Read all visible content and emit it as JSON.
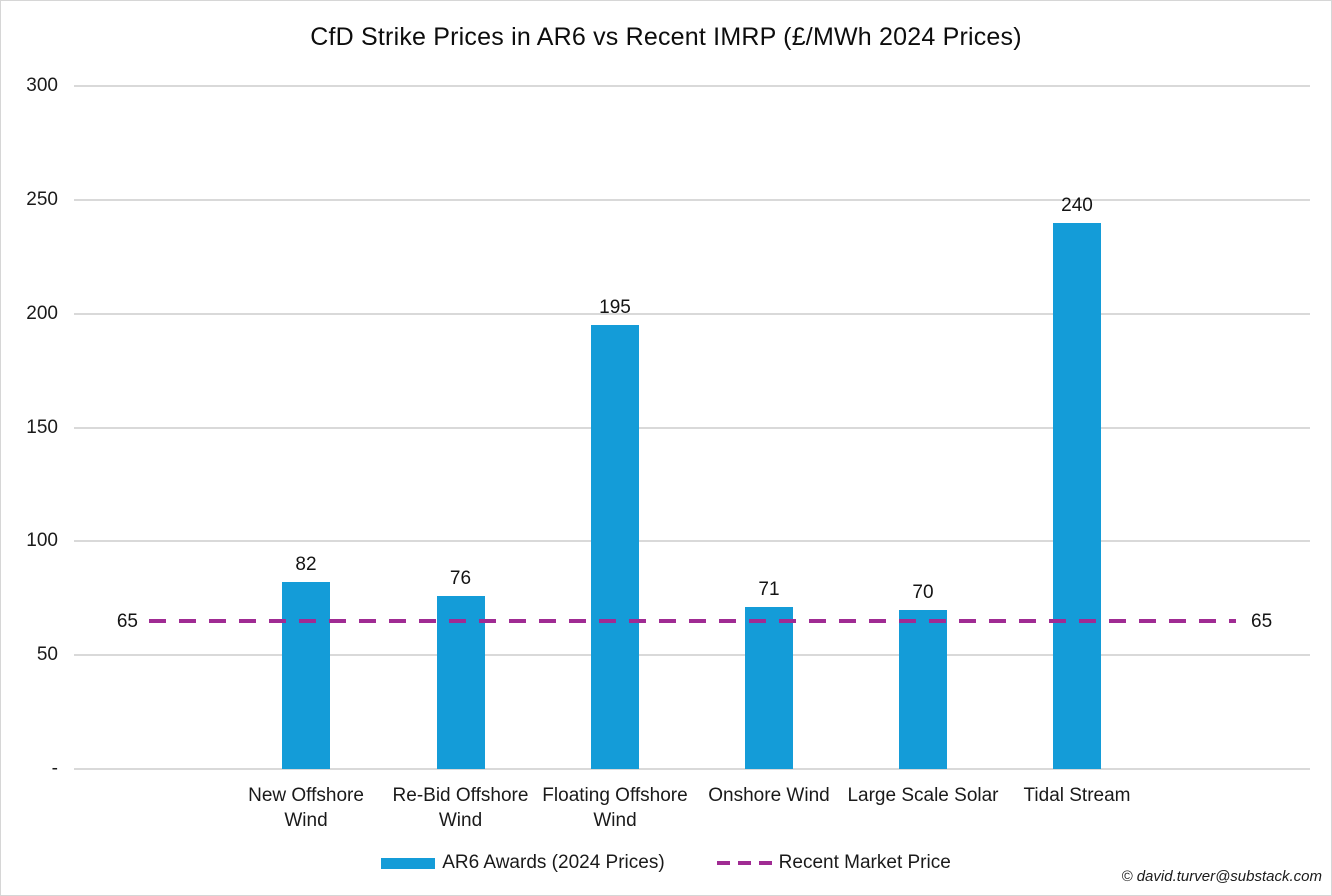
{
  "chart_data": {
    "type": "bar",
    "title": "CfD Strike Prices in AR6 vs Recent IMRP (£/MWh 2024 Prices)",
    "categories": [
      "New Offshore Wind",
      "Re-Bid Offshore Wind",
      "Floating Offshore Wind",
      "Onshore Wind",
      "Large Scale Solar",
      "Tidal Stream"
    ],
    "series": [
      {
        "name": "AR6 Awards (2024 Prices)",
        "type": "bar",
        "values": [
          82,
          76,
          195,
          71,
          70,
          240
        ],
        "color": "#149cd8"
      },
      {
        "name": "Recent Market Price",
        "type": "line",
        "style": "dashed",
        "value": 65,
        "color": "#a02b93",
        "edge_label_left": "65",
        "edge_label_right": "65"
      }
    ],
    "xlabel": "",
    "ylabel": "",
    "ylim": [
      0,
      300
    ],
    "y_ticks": [
      {
        "value": 300,
        "label": "300"
      },
      {
        "value": 250,
        "label": "250"
      },
      {
        "value": 200,
        "label": "200"
      },
      {
        "value": 150,
        "label": "150"
      },
      {
        "value": 100,
        "label": "100"
      },
      {
        "value": 50,
        "label": "50"
      },
      {
        "value": 0,
        "label": "-"
      }
    ],
    "grid": true,
    "legend_position": "bottom",
    "grid_color": "#d9d9d9"
  },
  "footer": {
    "copyright": "© david.turver@substack.com"
  }
}
